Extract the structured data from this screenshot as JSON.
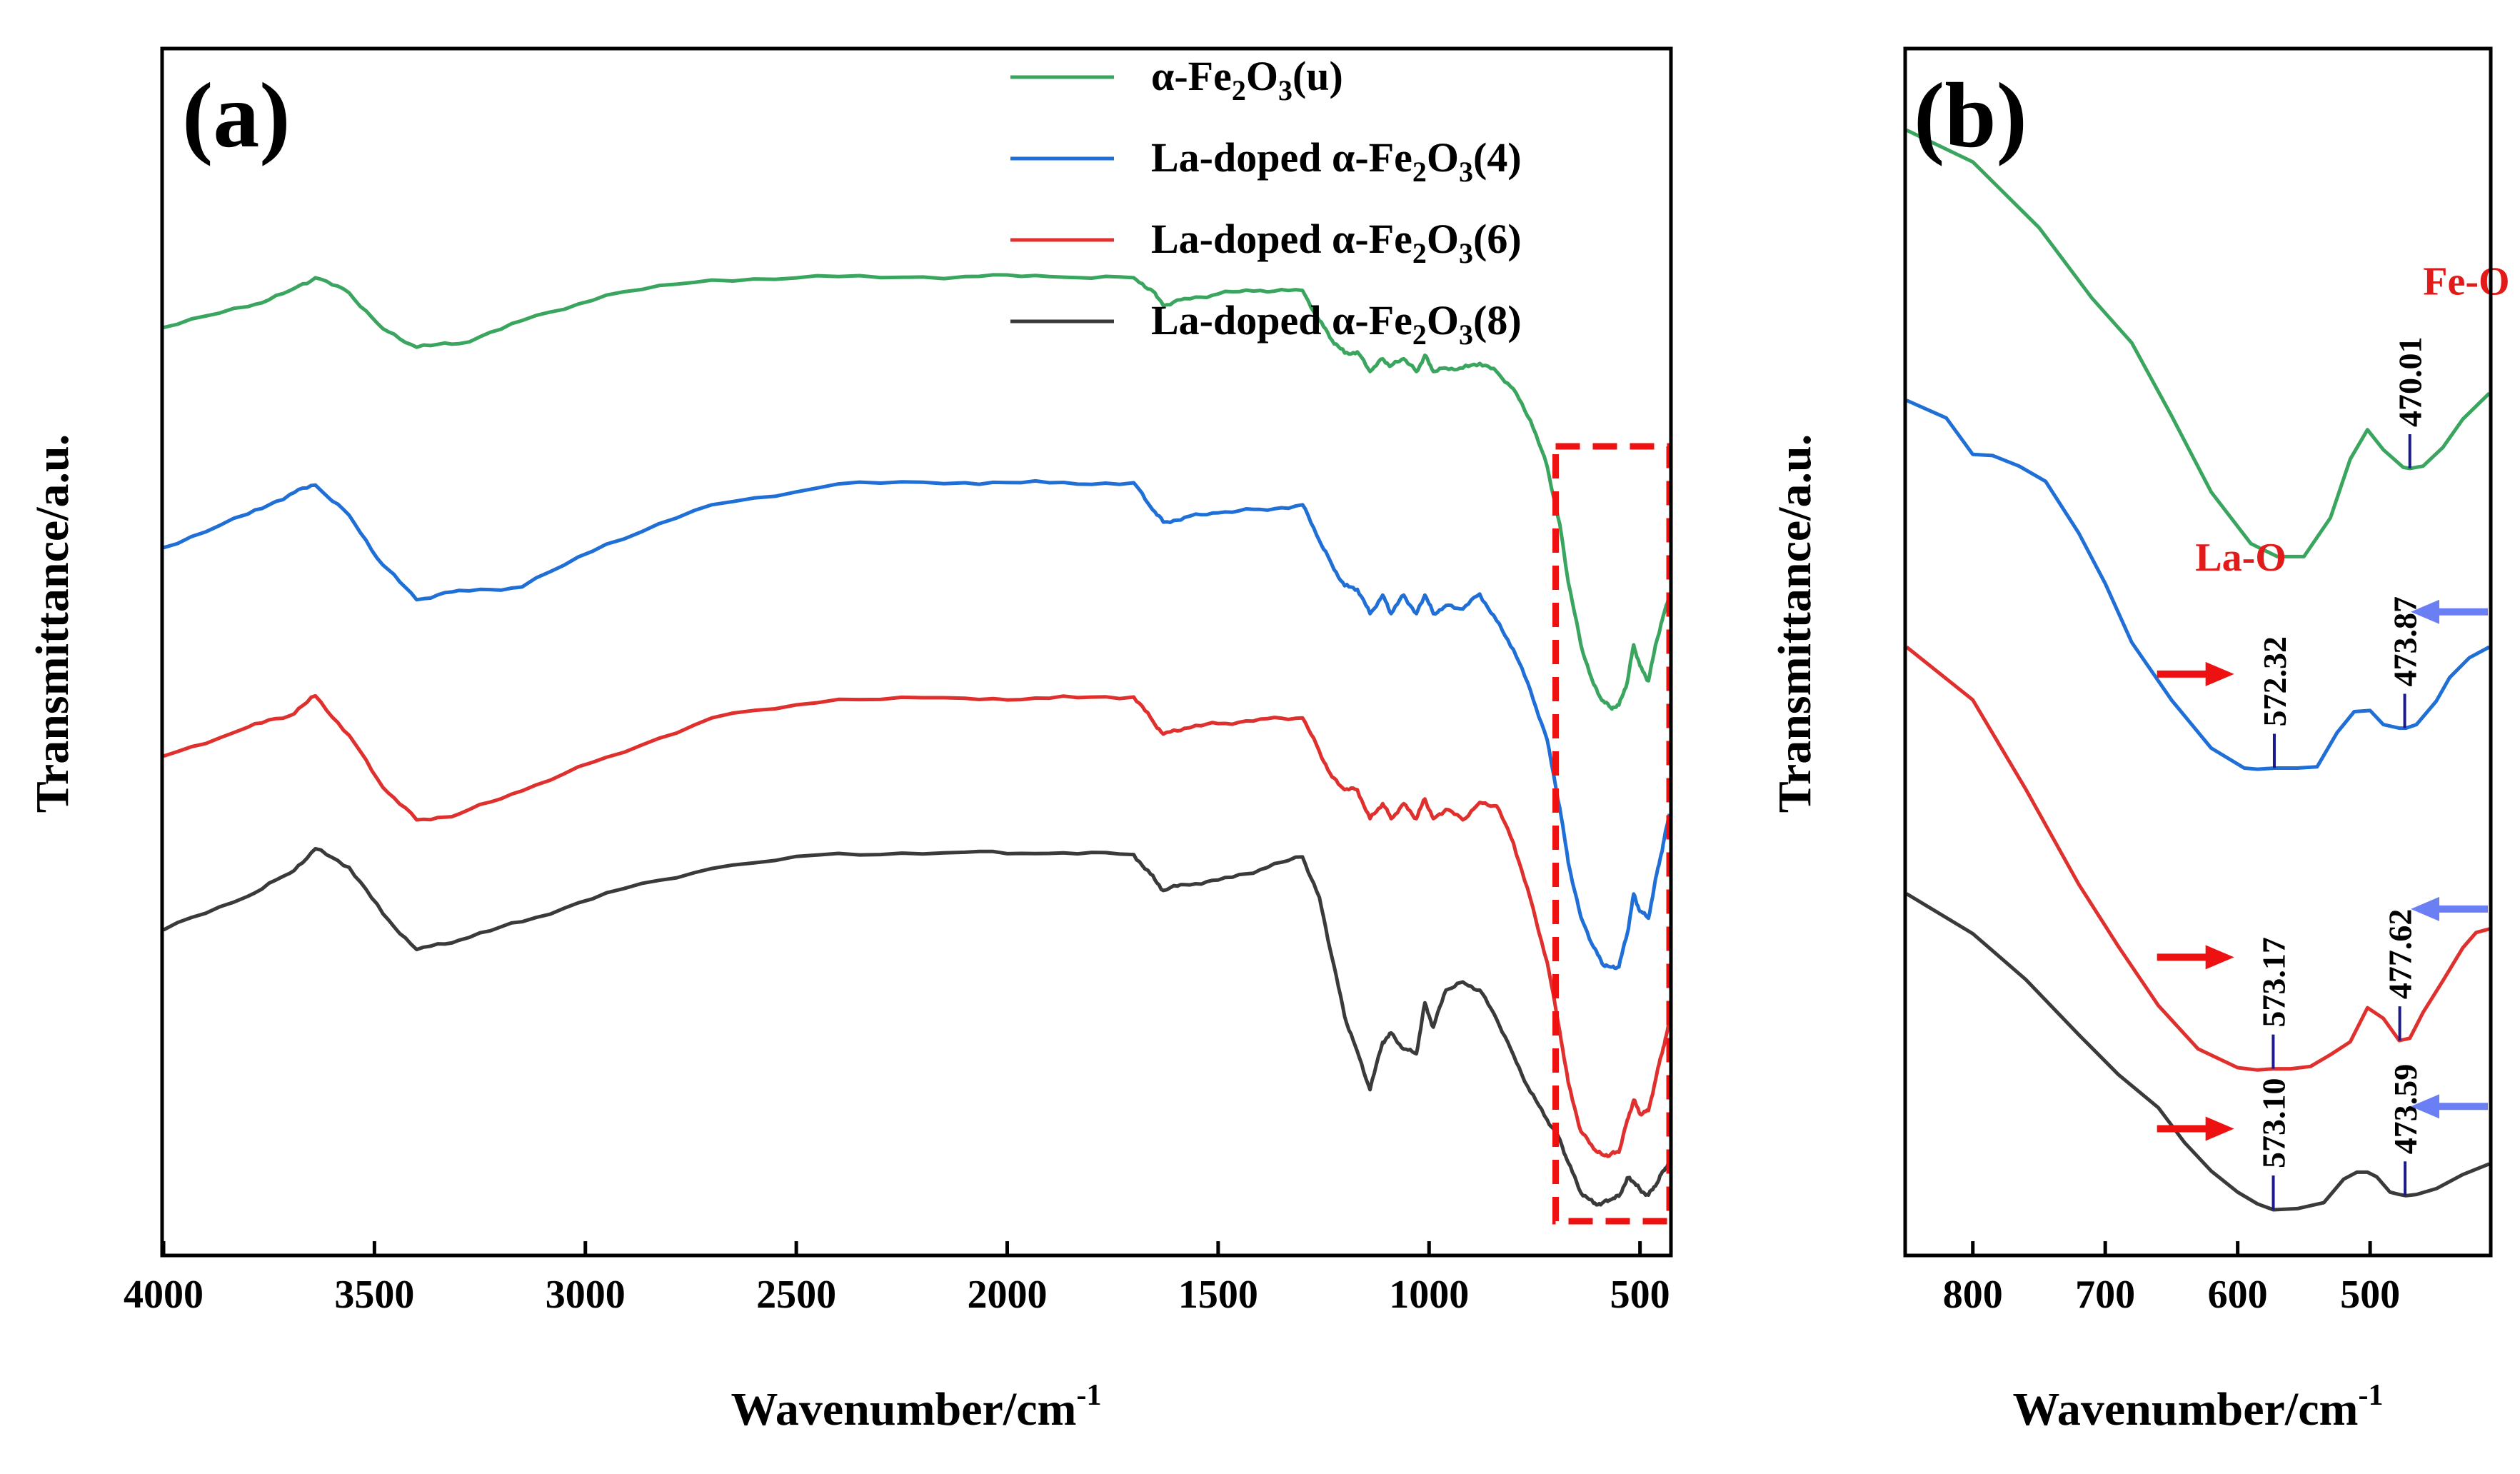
{
  "colors": {
    "green": "#3aa55e",
    "blue": "#1f6fd6",
    "red": "#e0302e",
    "black": "#3a3a3a",
    "bond_label": "#e11a1a",
    "red_arrow": "#ee1111",
    "blue_arrow": "#6b7ff5",
    "marker": "#1a1a8c",
    "box": "#ee1111"
  },
  "legend_entries": [
    {
      "base": "α-Fe",
      "sub1": "2",
      "mid": "O",
      "sub2": "3",
      "suffix": "(u)"
    },
    {
      "base": "La-doped α-Fe",
      "sub1": "2",
      "mid": "O",
      "sub2": "3",
      "suffix": "(4)"
    },
    {
      "base": "La-doped α-Fe",
      "sub1": "2",
      "mid": "O",
      "sub2": "3",
      "suffix": "(6)"
    },
    {
      "base": "La-doped α-Fe",
      "sub1": "2",
      "mid": "O",
      "sub2": "3",
      "suffix": "(8)"
    }
  ],
  "chart_data": [
    {
      "panel": "(a)",
      "type": "line",
      "xlabel_main": "Wavenumber/cm",
      "xlabel_sup": "-1",
      "ylabel": "Transmittance/a.u.",
      "xlim": [
        4000,
        430
      ],
      "ylim": [
        0,
        100
      ],
      "xticks": [
        4000,
        3500,
        3000,
        2500,
        2000,
        1500,
        1000,
        500
      ],
      "xtick_labels": [
        "4000",
        "3500",
        "3000",
        "2500",
        "2000",
        "1500",
        "1000",
        "500"
      ],
      "highlight_region": [
        700,
        430
      ],
      "series": [
        {
          "name": "α-Fe2O3(u)",
          "color_key": "green",
          "x": [
            4000,
            3800,
            3700,
            3640,
            3560,
            3480,
            3400,
            3300,
            3150,
            2950,
            2700,
            2400,
            2100,
            1900,
            1700,
            1660,
            1630,
            1580,
            1500,
            1400,
            1300,
            1260,
            1230,
            1200,
            1170,
            1140,
            1110,
            1090,
            1060,
            1030,
            1010,
            990,
            960,
            920,
            880,
            840,
            800,
            760,
            720,
            690,
            670,
            640,
            610,
            590,
            570,
            550,
            530,
            515,
            500,
            480,
            460,
            445,
            430
          ],
          "y": [
            79,
            80.8,
            82.2,
            83.3,
            82,
            78.9,
            77.3,
            77.6,
            79.6,
            81.8,
            83.1,
            83.4,
            83.4,
            83.4,
            83.3,
            82.3,
            80.9,
            81.5,
            81.9,
            82.2,
            82.2,
            79.6,
            77.9,
            76.8,
            76.9,
            75.2,
            76.3,
            75.7,
            76.3,
            75.2,
            76.6,
            75.2,
            75.5,
            75.5,
            75.9,
            75.2,
            73.7,
            71,
            67,
            62,
            57,
            51.6,
            48.2,
            46.8,
            46.2,
            46.4,
            48.4,
            51.6,
            49.8,
            48.5,
            52,
            54.1,
            56
          ]
        },
        {
          "name": "La-doped α-Fe2O3(4)",
          "color_key": "blue",
          "x": [
            4000,
            3800,
            3700,
            3640,
            3560,
            3480,
            3400,
            3300,
            3150,
            2950,
            2700,
            2400,
            2100,
            1900,
            1700,
            1660,
            1630,
            1580,
            1500,
            1400,
            1300,
            1260,
            1230,
            1200,
            1170,
            1140,
            1110,
            1090,
            1060,
            1030,
            1010,
            990,
            960,
            920,
            880,
            840,
            800,
            760,
            720,
            690,
            670,
            640,
            610,
            590,
            570,
            550,
            530,
            515,
            500,
            480,
            460,
            445,
            430
          ],
          "y": [
            60,
            62.9,
            64.6,
            65.4,
            62.8,
            58.5,
            55.5,
            56.3,
            56.6,
            60.3,
            63.7,
            65.5,
            65.6,
            65.6,
            65.6,
            63.5,
            62.2,
            62.6,
            63,
            63.3,
            63.7,
            60.6,
            58.5,
            56.7,
            56.4,
            54.3,
            55.9,
            54.3,
            55.9,
            54.3,
            55.9,
            54.3,
            55,
            54.7,
            56,
            53.7,
            51.2,
            47.7,
            43.4,
            37.5,
            32.8,
            28.1,
            25.5,
            24.1,
            23.8,
            23.8,
            26.7,
            30.1,
            28.6,
            28,
            31.9,
            34.4,
            37
          ]
        },
        {
          "name": "La-doped α-Fe2O3(6)",
          "color_key": "red",
          "x": [
            4000,
            3800,
            3700,
            3640,
            3560,
            3480,
            3400,
            3300,
            3150,
            2950,
            2700,
            2400,
            2100,
            1900,
            1700,
            1660,
            1630,
            1580,
            1500,
            1400,
            1300,
            1260,
            1230,
            1200,
            1170,
            1140,
            1110,
            1090,
            1060,
            1030,
            1010,
            990,
            960,
            920,
            880,
            840,
            800,
            760,
            720,
            690,
            670,
            640,
            610,
            590,
            570,
            550,
            530,
            515,
            500,
            480,
            460,
            445,
            430
          ],
          "y": [
            42,
            44.5,
            45.5,
            47.2,
            43.8,
            39.3,
            36.5,
            37,
            39,
            41.9,
            45.3,
            46.9,
            47,
            47,
            47.1,
            45.3,
            43.9,
            44.4,
            44.8,
            45.2,
            45.3,
            42.4,
            40.2,
            39.1,
            39.1,
            36.6,
            37.9,
            36.6,
            37.9,
            36.6,
            38.3,
            36.6,
            37.4,
            36.5,
            38,
            37.7,
            34.5,
            29.7,
            24.2,
            18.2,
            13.8,
            9.6,
            8.1,
            7.6,
            7.6,
            7.8,
            10.6,
            12.3,
            11.1,
            11.4,
            14.6,
            16.8,
            19
          ]
        },
        {
          "name": "La-doped α-Fe2O3(8)",
          "color_key": "black",
          "x": [
            4000,
            3800,
            3700,
            3640,
            3560,
            3480,
            3400,
            3300,
            3150,
            2950,
            2700,
            2400,
            2100,
            1900,
            1700,
            1660,
            1630,
            1580,
            1500,
            1400,
            1300,
            1260,
            1230,
            1200,
            1170,
            1140,
            1110,
            1090,
            1060,
            1030,
            1010,
            990,
            960,
            920,
            880,
            840,
            800,
            760,
            720,
            690,
            670,
            640,
            610,
            590,
            570,
            550,
            530,
            515,
            500,
            480,
            460,
            445,
            430
          ],
          "y": [
            27,
            29.9,
            31.9,
            34,
            32.4,
            28.4,
            25.3,
            26.1,
            27.7,
            30.2,
            32.3,
            33.6,
            33.7,
            33.6,
            33.5,
            31.8,
            30.4,
            30.9,
            31.3,
            32.2,
            33.3,
            29.8,
            24.6,
            19.5,
            16.5,
            13.2,
            17.3,
            18.1,
            16.7,
            16.3,
            20.7,
            18.6,
            21.8,
            22.5,
            21.8,
            19.3,
            16.2,
            13,
            10.6,
            8.9,
            6.9,
            4.3,
            3.4,
            3.4,
            3.7,
            4,
            5.6,
            5.2,
            4.6,
            4.1,
            5.1,
            6.2,
            7
          ]
        }
      ]
    },
    {
      "panel": "(b)",
      "type": "line",
      "xlabel_main": "Wavenumber/cm",
      "xlabel_sup": "-1",
      "ylabel": "Transmittance/a.u.",
      "xlim": [
        850,
        410
      ],
      "ylim": [
        0,
        100
      ],
      "xticks": [
        800,
        700,
        600,
        500
      ],
      "xtick_labels": [
        "800",
        "700",
        "600",
        "500"
      ],
      "series": [
        {
          "name": "α-Fe2O3(u)",
          "color_key": "green",
          "x": [
            850,
            800,
            750,
            710,
            680,
            650,
            620,
            590,
            570,
            550,
            530,
            515,
            502,
            490,
            475,
            470,
            460,
            445,
            430,
            410
          ],
          "y": [
            95,
            92.3,
            86.7,
            80.7,
            76.9,
            70.7,
            64.2,
            59.8,
            58.7,
            58.7,
            62,
            67,
            69.5,
            67.8,
            66.3,
            66.2,
            66.4,
            68,
            70.4,
            72.6
          ]
        },
        {
          "name": "La-doped α-Fe2O3(4)",
          "color_key": "blue",
          "x": [
            850,
            820,
            800,
            785,
            765,
            745,
            720,
            700,
            680,
            650,
            620,
            595,
            585,
            572,
            555,
            540,
            525,
            512,
            500,
            490,
            478,
            473,
            465,
            450,
            440,
            425,
            410
          ],
          "y": [
            72,
            70.5,
            67.4,
            67.3,
            66.4,
            65.1,
            60.7,
            56.4,
            51.4,
            46.5,
            42.4,
            40.7,
            40.6,
            40.7,
            40.7,
            40.8,
            43.7,
            45.5,
            45.6,
            44.4,
            44.1,
            44.1,
            44.4,
            46.4,
            48.4,
            50.1,
            51
          ]
        },
        {
          "name": "La-doped α-Fe2O3(6)",
          "color_key": "red",
          "x": [
            850,
            800,
            760,
            720,
            690,
            660,
            630,
            600,
            585,
            573,
            560,
            545,
            530,
            515,
            502,
            490,
            478,
            470,
            460,
            445,
            430,
            420,
            410
          ],
          "y": [
            51,
            46.5,
            38.9,
            30.8,
            25.5,
            20.5,
            16.8,
            15.2,
            15,
            15.1,
            15.1,
            15.3,
            16.3,
            17.4,
            20.3,
            19.4,
            17.5,
            17.7,
            19.9,
            22.6,
            25.4,
            26.7,
            27
          ]
        },
        {
          "name": "La-doped α-Fe2O3(8)",
          "color_key": "black",
          "x": [
            850,
            800,
            760,
            720,
            690,
            660,
            640,
            620,
            600,
            585,
            573,
            555,
            535,
            520,
            510,
            502,
            495,
            485,
            478,
            473,
            465,
            450,
            430,
            410
          ],
          "y": [
            30,
            26.6,
            22.7,
            18,
            14.6,
            11.8,
            8.8,
            6.4,
            4.6,
            3.6,
            3.1,
            3.2,
            3.7,
            5.7,
            6.3,
            6.3,
            5.9,
            4.6,
            4.4,
            4.3,
            4.4,
            4.9,
            6.1,
            7
          ]
        }
      ],
      "markers": [
        {
          "x": 470.01,
          "y": 66.2,
          "label": "470.01",
          "color_key": "marker"
        },
        {
          "x": 572.32,
          "y": 40.7,
          "label": "572.32",
          "color_key": "marker"
        },
        {
          "x": 473.87,
          "y": 44.1,
          "label": "473.87",
          "color_key": "marker"
        },
        {
          "x": 573.17,
          "y": 15.1,
          "label": "573.17",
          "color_key": "marker"
        },
        {
          "x": 477.62,
          "y": 17.5,
          "label": "477.62",
          "color_key": "marker"
        },
        {
          "x": 573.1,
          "y": 3.1,
          "label": "573.10",
          "color_key": "marker"
        },
        {
          "x": 473.59,
          "y": 4.3,
          "label": "473.59",
          "color_key": "marker"
        }
      ],
      "bond_labels": [
        {
          "text": "Fe-O",
          "x": 460,
          "y": 81
        },
        {
          "text": "La-O",
          "x": 632,
          "y": 57.5
        }
      ],
      "arrows": [
        {
          "direction": "right",
          "x": 662,
          "y": 48.7,
          "color_key": "red_arrow"
        },
        {
          "direction": "right",
          "x": 662,
          "y": 24.6,
          "color_key": "red_arrow"
        },
        {
          "direction": "right",
          "x": 662,
          "y": 10.0,
          "color_key": "red_arrow"
        },
        {
          "direction": "left",
          "x": 410,
          "y": 54.0,
          "color_key": "blue_arrow"
        },
        {
          "direction": "left",
          "x": 410,
          "y": 28.7,
          "color_key": "blue_arrow"
        },
        {
          "direction": "left",
          "x": 410,
          "y": 11.9,
          "color_key": "blue_arrow"
        }
      ]
    }
  ]
}
